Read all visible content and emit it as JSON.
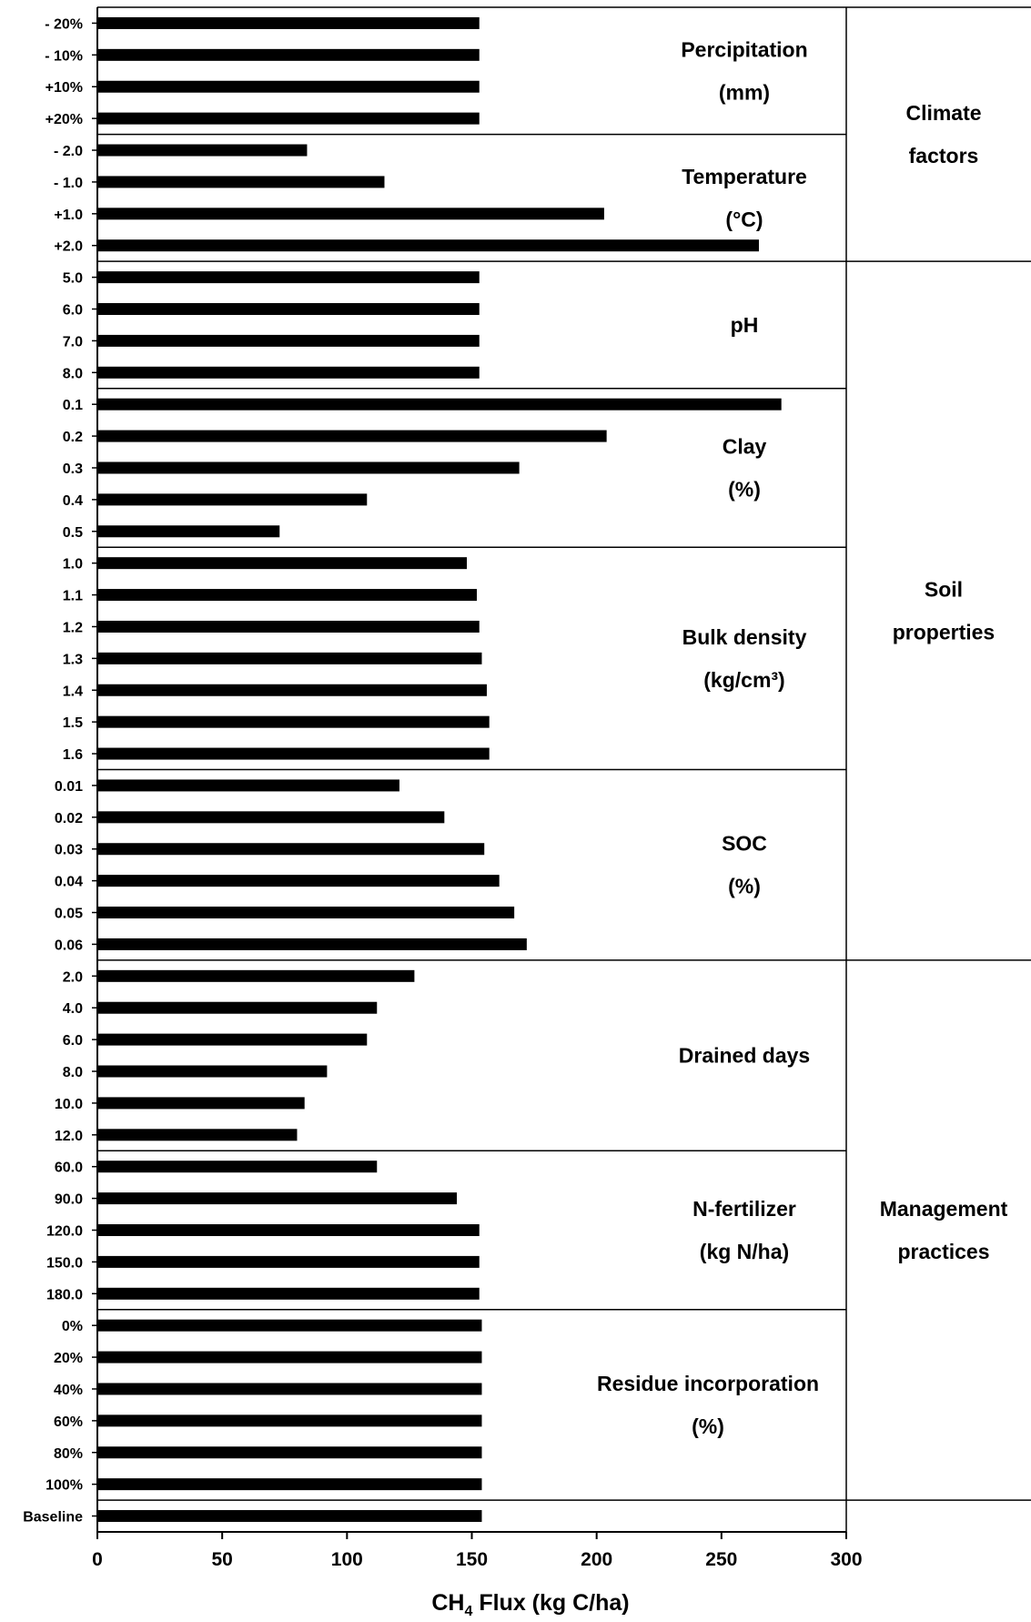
{
  "chart_data": {
    "type": "bar",
    "orientation": "horizontal",
    "xlabel": {
      "main": "CH",
      "sub": "4",
      "rest": " Flux  (kg C/ha)"
    },
    "xlim": [
      0,
      300
    ],
    "xticks": [
      "0",
      "50",
      "100",
      "150",
      "200",
      "250",
      "300"
    ],
    "groups": [
      {
        "name_lines": [
          "Percipitation",
          "(mm)"
        ],
        "categories": [
          "- 20%",
          "- 10%",
          "+10%",
          "+20%"
        ],
        "values": [
          153,
          153,
          153,
          153
        ]
      },
      {
        "name_lines": [
          "Temperature",
          "(°C)"
        ],
        "categories": [
          "- 2.0",
          "- 1.0",
          "+1.0",
          "+2.0"
        ],
        "values": [
          84,
          115,
          203,
          265
        ]
      },
      {
        "name_lines": [
          "pH"
        ],
        "categories": [
          "5.0",
          "6.0",
          "7.0",
          "8.0"
        ],
        "values": [
          153,
          153,
          153,
          153
        ]
      },
      {
        "name_lines": [
          "Clay",
          "(%)"
        ],
        "categories": [
          "0.1",
          "0.2",
          "0.3",
          "0.4",
          "0.5"
        ],
        "values": [
          274,
          204,
          169,
          108,
          73
        ]
      },
      {
        "name_lines": [
          "Bulk density",
          "(kg/cm³)"
        ],
        "categories": [
          "1.0",
          "1.1",
          "1.2",
          "1.3",
          "1.4",
          "1.5",
          "1.6"
        ],
        "values": [
          148,
          152,
          153,
          154,
          156,
          157,
          157
        ]
      },
      {
        "name_lines": [
          "SOC",
          "(%)"
        ],
        "categories": [
          "0.01",
          "0.02",
          "0.03",
          "0.04",
          "0.05",
          "0.06"
        ],
        "values": [
          121,
          139,
          155,
          161,
          167,
          172
        ]
      },
      {
        "name_lines": [
          "Drained days"
        ],
        "categories": [
          "2.0",
          "4.0",
          "6.0",
          "8.0",
          "10.0",
          "12.0"
        ],
        "values": [
          127,
          112,
          108,
          92,
          83,
          80
        ]
      },
      {
        "name_lines": [
          "N-fertilizer",
          "(kg N/ha)"
        ],
        "categories": [
          "60.0",
          "90.0",
          "120.0",
          "150.0",
          "180.0"
        ],
        "values": [
          112,
          144,
          153,
          153,
          153
        ]
      },
      {
        "name_lines": [
          "Residue incorporation",
          "(%)"
        ],
        "categories": [
          "0%",
          "20%",
          "40%",
          "60%",
          "80%",
          "100%"
        ],
        "values": [
          154,
          154,
          154,
          154,
          154,
          154
        ]
      },
      {
        "name_lines": [],
        "categories": [
          "Baseline"
        ],
        "values": [
          154
        ]
      }
    ],
    "factor_groups": [
      {
        "name_lines": [
          "Climate",
          "factors"
        ]
      },
      {
        "name_lines": [
          "Soil",
          "properties"
        ]
      },
      {
        "name_lines": [
          "Management",
          "practices"
        ]
      }
    ]
  }
}
